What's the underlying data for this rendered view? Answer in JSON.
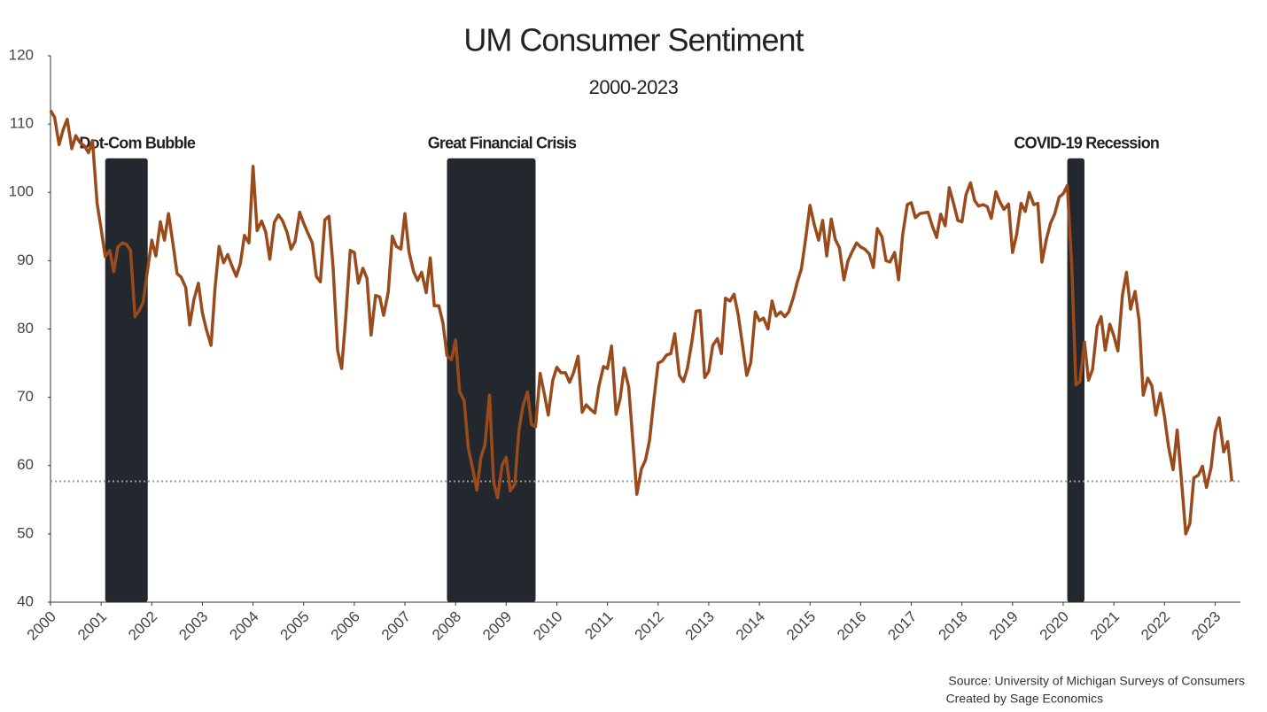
{
  "chart_data": {
    "type": "line",
    "title": "UM Consumer Sentiment",
    "subtitle": "2000-2023",
    "source": [
      "Source: University of Michigan Surveys of Consumers",
      "Created by Sage Economics"
    ],
    "x": [
      2000,
      2000.08,
      2000.17,
      2000.25,
      2000.33,
      2000.42,
      2000.5,
      2000.58,
      2000.67,
      2000.75,
      2000.83,
      2000.92,
      2001,
      2001.08,
      2001.17,
      2001.25,
      2001.33,
      2001.42,
      2001.5,
      2001.58,
      2001.67,
      2001.75,
      2001.83,
      2001.92,
      2002,
      2002.08,
      2002.17,
      2002.25,
      2002.33,
      2002.42,
      2002.5,
      2002.58,
      2002.67,
      2002.75,
      2002.83,
      2002.92,
      2003,
      2003.08,
      2003.17,
      2003.25,
      2003.33,
      2003.42,
      2003.5,
      2003.58,
      2003.67,
      2003.75,
      2003.83,
      2003.92,
      2004,
      2004.08,
      2004.17,
      2004.25,
      2004.33,
      2004.42,
      2004.5,
      2004.58,
      2004.67,
      2004.75,
      2004.83,
      2004.92,
      2005,
      2005.08,
      2005.17,
      2005.25,
      2005.33,
      2005.42,
      2005.5,
      2005.58,
      2005.67,
      2005.75,
      2005.83,
      2005.92,
      2006,
      2006.08,
      2006.17,
      2006.25,
      2006.33,
      2006.42,
      2006.5,
      2006.58,
      2006.67,
      2006.75,
      2006.83,
      2006.92,
      2007,
      2007.08,
      2007.17,
      2007.25,
      2007.33,
      2007.42,
      2007.5,
      2007.58,
      2007.67,
      2007.75,
      2007.83,
      2007.92,
      2008,
      2008.08,
      2008.17,
      2008.25,
      2008.33,
      2008.42,
      2008.5,
      2008.58,
      2008.67,
      2008.75,
      2008.83,
      2008.92,
      2009,
      2009.08,
      2009.17,
      2009.25,
      2009.33,
      2009.42,
      2009.5,
      2009.58,
      2009.67,
      2009.75,
      2009.83,
      2009.92,
      2010,
      2010.08,
      2010.17,
      2010.25,
      2010.33,
      2010.42,
      2010.5,
      2010.58,
      2010.67,
      2010.75,
      2010.83,
      2010.92,
      2011,
      2011.08,
      2011.17,
      2011.25,
      2011.33,
      2011.42,
      2011.5,
      2011.58,
      2011.67,
      2011.75,
      2011.83,
      2011.92,
      2012,
      2012.08,
      2012.17,
      2012.25,
      2012.33,
      2012.42,
      2012.5,
      2012.58,
      2012.67,
      2012.75,
      2012.83,
      2012.92,
      2013,
      2013.08,
      2013.17,
      2013.25,
      2013.33,
      2013.42,
      2013.5,
      2013.58,
      2013.67,
      2013.75,
      2013.83,
      2013.92,
      2014,
      2014.08,
      2014.17,
      2014.25,
      2014.33,
      2014.42,
      2014.5,
      2014.58,
      2014.67,
      2014.75,
      2014.83,
      2014.92,
      2015,
      2015.08,
      2015.17,
      2015.25,
      2015.33,
      2015.42,
      2015.5,
      2015.58,
      2015.67,
      2015.75,
      2015.83,
      2015.92,
      2016,
      2016.08,
      2016.17,
      2016.25,
      2016.33,
      2016.42,
      2016.5,
      2016.58,
      2016.67,
      2016.75,
      2016.83,
      2016.92,
      2017,
      2017.08,
      2017.17,
      2017.25,
      2017.33,
      2017.42,
      2017.5,
      2017.58,
      2017.67,
      2017.75,
      2017.83,
      2017.92,
      2018,
      2018.08,
      2018.17,
      2018.25,
      2018.33,
      2018.42,
      2018.5,
      2018.58,
      2018.67,
      2018.75,
      2018.83,
      2018.92,
      2019,
      2019.08,
      2019.17,
      2019.25,
      2019.33,
      2019.42,
      2019.5,
      2019.58,
      2019.67,
      2019.75,
      2019.83,
      2019.92,
      2020,
      2020.08,
      2020.17,
      2020.25,
      2020.33,
      2020.42,
      2020.5,
      2020.58,
      2020.67,
      2020.75,
      2020.83,
      2020.92,
      2021,
      2021.08,
      2021.17,
      2021.25,
      2021.33,
      2021.42,
      2021.5,
      2021.58,
      2021.67,
      2021.75,
      2021.83,
      2021.92,
      2022,
      2022.08,
      2022.17,
      2022.25,
      2022.33,
      2022.42,
      2022.5,
      2022.58,
      2022.67,
      2022.75,
      2022.83,
      2022.92,
      2023,
      2023.08,
      2023.17,
      2023.25,
      2023.33
    ],
    "series": [
      {
        "name": "Consumer Sentiment",
        "color": "#9a4b1c",
        "values": [
          112,
          111,
          107,
          109.2,
          110.7,
          106.4,
          108.3,
          107.3,
          106.8,
          105.8,
          107.6,
          98.4,
          94.7,
          90.6,
          91.5,
          88.4,
          92,
          92.6,
          92.4,
          91.5,
          81.8,
          82.7,
          83.9,
          88.8,
          93,
          90.7,
          95.7,
          93,
          96.9,
          92.4,
          88.1,
          87.6,
          86.1,
          80.6,
          84.2,
          86.7,
          82.4,
          79.9,
          77.6,
          86,
          92.1,
          89.7,
          90.9,
          89.3,
          87.7,
          89.6,
          93.7,
          92.6,
          103.8,
          94.4,
          95.8,
          94.2,
          90.2,
          95.6,
          96.7,
          95.9,
          94.2,
          91.7,
          92.8,
          97.1,
          95.5,
          94.1,
          92.6,
          87.7,
          86.9,
          96,
          96.5,
          89.1,
          76.9,
          74.2,
          81.6,
          91.5,
          91.2,
          86.7,
          88.9,
          87.4,
          79.1,
          84.9,
          84.7,
          82,
          85.4,
          93.6,
          92.1,
          91.7,
          96.9,
          91.3,
          88.4,
          87.1,
          88.3,
          85.3,
          90.4,
          83.4,
          83.4,
          80.9,
          76.1,
          75.5,
          78.4,
          70.8,
          69.5,
          62.6,
          59.8,
          56.4,
          61.2,
          63,
          70.3,
          57.6,
          55.3,
          60.1,
          61.2,
          56.3,
          57.3,
          65.1,
          68.7,
          70.8,
          66,
          65.7,
          73.5,
          70.6,
          67.4,
          72.5,
          74.4,
          73.6,
          73.6,
          72.2,
          73.6,
          76,
          67.8,
          68.9,
          68.2,
          67.7,
          71.6,
          74.5,
          74.2,
          77.5,
          67.5,
          69.8,
          74.3,
          71.5,
          63.7,
          55.8,
          59.5,
          60.8,
          63.7,
          69.9,
          75,
          75.3,
          76.2,
          76.4,
          79.3,
          73.2,
          72.3,
          74.3,
          78.3,
          82.6,
          82.7,
          72.9,
          73.8,
          77.6,
          78.6,
          76.4,
          84.5,
          84.1,
          85.1,
          82.1,
          77.5,
          73.2,
          75.1,
          82.5,
          81.2,
          81.6,
          80,
          84.1,
          81.9,
          82.5,
          81.8,
          82.5,
          84.6,
          86.9,
          88.8,
          93.6,
          98.1,
          95.4,
          93,
          95.9,
          90.7,
          96.1,
          93.1,
          91.9,
          87.2,
          90,
          91.3,
          92.6,
          92,
          91.7,
          91,
          89,
          94.7,
          93.5,
          90,
          89.8,
          91.2,
          87.2,
          93.8,
          98.2,
          98.5,
          96.3,
          96.9,
          97,
          97.1,
          95,
          93.4,
          96.8,
          95.1,
          100.7,
          98.5,
          95.9,
          95.7,
          99.7,
          101.4,
          98.8,
          98,
          98.2,
          97.9,
          96.2,
          100.1,
          98.6,
          97.5,
          98.3,
          91.2,
          93.8,
          98.4,
          97.2,
          100,
          98.2,
          98.4,
          89.8,
          93.2,
          95.5,
          96.8,
          99.3,
          99.8,
          101,
          89.1,
          71.8,
          72.3,
          78.1,
          72.5,
          74.1,
          80.4,
          81.8,
          76.9,
          80.7,
          79,
          76.8,
          84.9,
          88.3,
          82.9,
          85.5,
          81.2,
          70.3,
          72.8,
          71.7,
          67.4,
          70.6,
          67.2,
          62.8,
          59.4,
          65.2,
          58.4,
          50,
          51.5,
          58.2,
          58.6,
          59.9,
          56.8,
          59.7,
          64.9,
          67,
          62,
          63.5,
          57.7
        ]
      }
    ],
    "hline": 57.7,
    "recessions": [
      {
        "label": "Dot-Com Bubble",
        "start": 2001.08,
        "end": 2001.92,
        "top": 105
      },
      {
        "label": "Great Financial Crisis",
        "start": 2007.83,
        "end": 2009.58,
        "top": 105
      },
      {
        "label": "COVID-19 Recession",
        "start": 2020.08,
        "end": 2020.42,
        "top": 105
      }
    ],
    "xlim": [
      2000,
      2023.5
    ],
    "xticks": [
      2000,
      2001,
      2002,
      2003,
      2004,
      2005,
      2006,
      2007,
      2008,
      2009,
      2010,
      2011,
      2012,
      2013,
      2014,
      2015,
      2016,
      2017,
      2018,
      2019,
      2020,
      2021,
      2022,
      2023
    ],
    "ylim": [
      40,
      120
    ],
    "yticks": [
      40,
      50,
      60,
      70,
      80,
      90,
      100,
      110,
      120
    ],
    "grid": false
  }
}
